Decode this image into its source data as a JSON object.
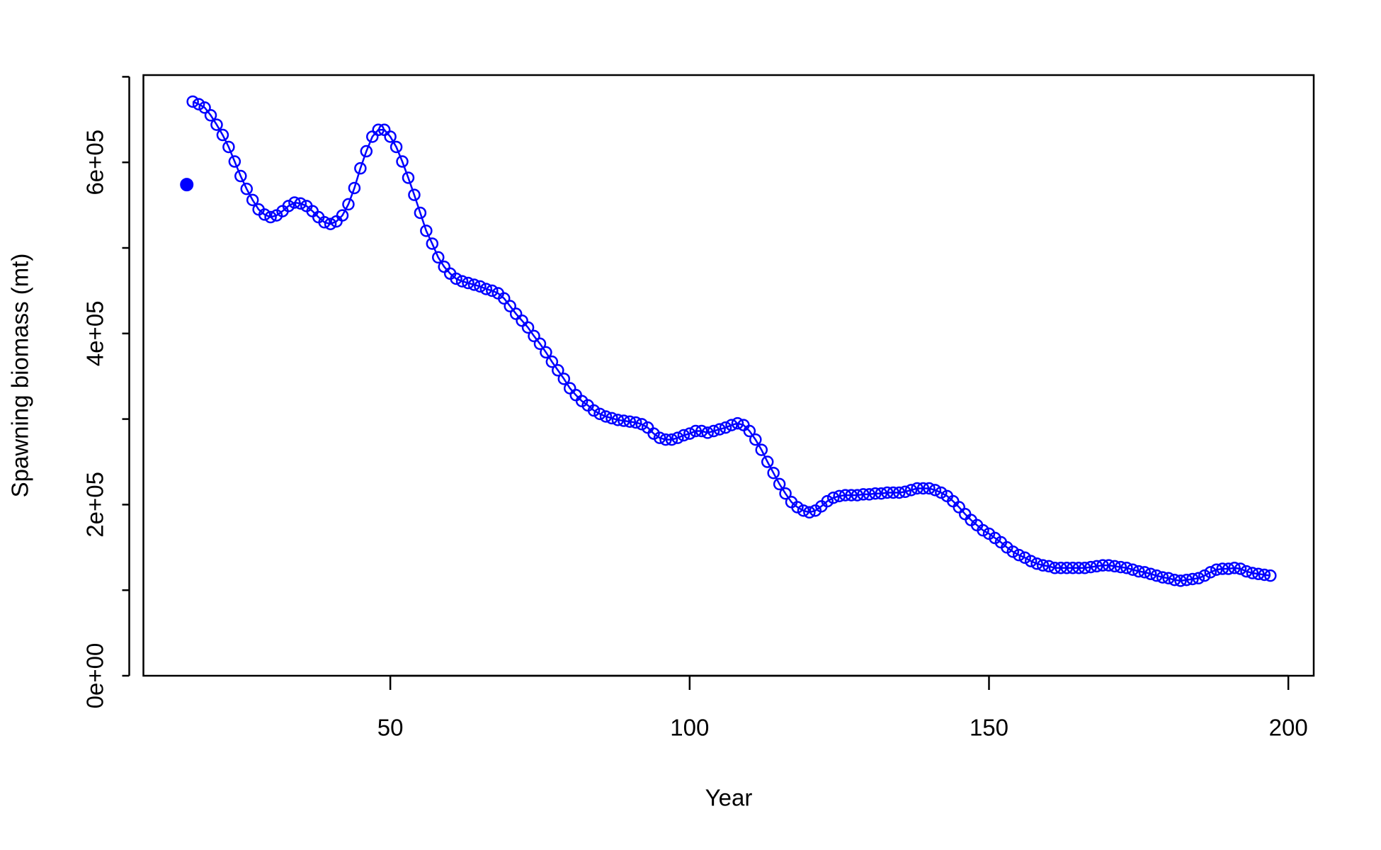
{
  "chart_data": {
    "type": "line",
    "xlabel": "Year",
    "ylabel": "Spawning biomass (mt)",
    "xlim": [
      8.76,
      204.24
    ],
    "ylim": [
      0,
      702000
    ],
    "xticks": [
      50,
      100,
      150,
      200
    ],
    "yticks": [
      {
        "value": 0,
        "label": "0e+00"
      },
      {
        "value": 100000
      },
      {
        "value": 200000,
        "label": "2e+05"
      },
      {
        "value": 300000
      },
      {
        "value": 400000,
        "label": "4e+05"
      },
      {
        "value": 500000
      },
      {
        "value": 600000,
        "label": "6e+05"
      },
      {
        "value": 700000
      }
    ],
    "series": [
      {
        "color": "#0000ff",
        "marker": "open-circle",
        "x": [
          17,
          18,
          19,
          20,
          21,
          22,
          23,
          24,
          25,
          26,
          27,
          28,
          29,
          30,
          31,
          32,
          33,
          34,
          35,
          36,
          37,
          38,
          39,
          40,
          41,
          42,
          43,
          44,
          45,
          46,
          47,
          48,
          49,
          50,
          51,
          52,
          53,
          54,
          55,
          56,
          57,
          58,
          59,
          60,
          61,
          62,
          63,
          64,
          65,
          66,
          67,
          68,
          69,
          70,
          71,
          72,
          73,
          74,
          75,
          76,
          77,
          78,
          79,
          80,
          81,
          82,
          83,
          84,
          85,
          86,
          87,
          88,
          89,
          90,
          91,
          92,
          93,
          94,
          95,
          96,
          97,
          98,
          99,
          100,
          101,
          102,
          103,
          104,
          105,
          106,
          107,
          108,
          109,
          110,
          111,
          112,
          113,
          114,
          115,
          116,
          117,
          118,
          119,
          120,
          121,
          122,
          123,
          124,
          125,
          126,
          127,
          128,
          129,
          130,
          131,
          132,
          133,
          134,
          135,
          136,
          137,
          138,
          139,
          140,
          141,
          142,
          143,
          144,
          145,
          146,
          147,
          148,
          149,
          150,
          151,
          152,
          153,
          154,
          155,
          156,
          157,
          158,
          159,
          160,
          161,
          162,
          163,
          164,
          165,
          166,
          167,
          168,
          169,
          170,
          171,
          172,
          173,
          174,
          175,
          176,
          177,
          178,
          179,
          180,
          181,
          182,
          183,
          184,
          185,
          186,
          187,
          188,
          189,
          190,
          191,
          192,
          193,
          194,
          195,
          196,
          197
        ],
        "values": [
          671000,
          668000,
          664000,
          655000,
          644000,
          632000,
          618000,
          601000,
          584000,
          569000,
          556000,
          545000,
          539000,
          536000,
          538000,
          543000,
          549000,
          553000,
          552000,
          549000,
          543000,
          536000,
          530000,
          528000,
          531000,
          538000,
          551000,
          570000,
          593000,
          613000,
          630000,
          638000,
          638000,
          630000,
          618000,
          601000,
          582000,
          562000,
          541000,
          520000,
          505000,
          489000,
          478000,
          470000,
          464000,
          461000,
          459000,
          457000,
          455000,
          452000,
          450000,
          447000,
          441000,
          432000,
          423000,
          415000,
          407000,
          397000,
          388000,
          378000,
          367000,
          357000,
          347000,
          336000,
          328000,
          321000,
          316000,
          310000,
          306000,
          303000,
          301000,
          299000,
          298000,
          297000,
          296000,
          294000,
          290000,
          283000,
          278000,
          276000,
          276000,
          278000,
          281000,
          283000,
          286000,
          286000,
          284000,
          286000,
          288000,
          290000,
          293000,
          295000,
          293000,
          286000,
          276000,
          264000,
          250000,
          237000,
          224000,
          213000,
          203000,
          197000,
          193000,
          191000,
          193000,
          198000,
          204000,
          208000,
          210000,
          211000,
          211000,
          211000,
          212000,
          212000,
          213000,
          213000,
          214000,
          214000,
          214000,
          215000,
          217000,
          219000,
          219000,
          219000,
          217000,
          214000,
          210000,
          204000,
          197000,
          189000,
          182000,
          176000,
          170000,
          166000,
          161000,
          156000,
          150000,
          145000,
          141000,
          138000,
          134000,
          131000,
          129000,
          128000,
          126000,
          126000,
          126000,
          126000,
          126000,
          126000,
          127000,
          128000,
          129000,
          129000,
          128000,
          127000,
          126000,
          124000,
          122000,
          121000,
          119000,
          117000,
          115000,
          114000,
          112000,
          111000,
          112000,
          113000,
          114000,
          117000,
          121000,
          124000,
          125000,
          125000,
          126000,
          125000,
          122000,
          120000,
          119000,
          118000,
          117000
        ]
      }
    ],
    "points": [
      {
        "x": 16,
        "y": 574000,
        "color": "#0000ff",
        "marker": "filled-circle"
      }
    ]
  }
}
